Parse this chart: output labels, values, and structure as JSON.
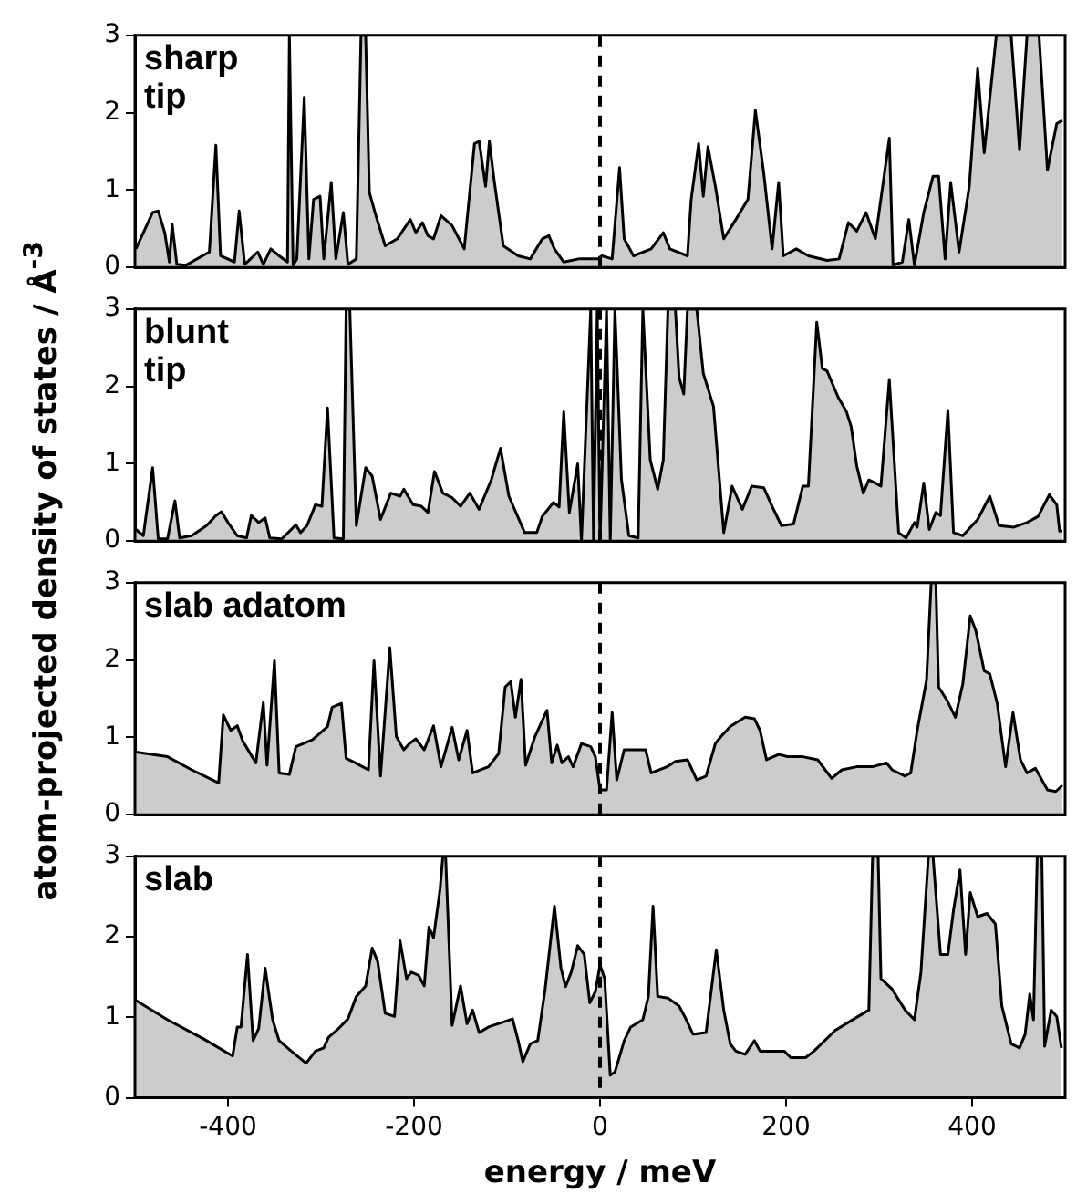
{
  "chart_data": [
    {
      "type": "area",
      "title": "sharp\ntip",
      "ylabel": "atom-projected density of states / Å$^{-3}$",
      "xlim": [
        -500,
        500
      ],
      "ylim": [
        0,
        3
      ],
      "xticks": [
        -400,
        -200,
        0,
        200,
        400
      ],
      "yticks": [
        0,
        1,
        2,
        3
      ],
      "tick_labels": "y",
      "legend": false,
      "grid": false,
      "ref_lines": [
        {
          "axis": "x",
          "value": 0,
          "line_style": "dashed",
          "color": "#000000"
        }
      ],
      "series": [
        {
          "color": "#000000",
          "x": [
            -499,
            -481,
            -475,
            -468,
            -463,
            -460,
            -455,
            -445,
            -420,
            -413,
            -408,
            -393,
            -388,
            -382,
            -368,
            -362,
            -354,
            -345,
            -336,
            -334,
            -330,
            -326,
            -318,
            -313,
            -308,
            -301,
            -297,
            -289,
            -284,
            -276,
            -271,
            -262,
            -257,
            -252,
            -248,
            -241,
            -231,
            -218,
            -204,
            -198,
            -191,
            -185,
            -179,
            -171,
            -159,
            -146,
            -135,
            -130,
            -123,
            -119,
            -114,
            -104,
            -88,
            -75,
            -62,
            -55,
            -49,
            -39,
            -23,
            -10,
            -2,
            2,
            13,
            21,
            26,
            36,
            55,
            68,
            75,
            94,
            98,
            106,
            111,
            116,
            124,
            133,
            146,
            159,
            167,
            176,
            185,
            192,
            197,
            211,
            224,
            244,
            257,
            267,
            276,
            286,
            296,
            311,
            315,
            325,
            332,
            338,
            348,
            358,
            364,
            371,
            377,
            386,
            397,
            406,
            413,
            426,
            442,
            451,
            459,
            472,
            481,
            491,
            497
          ],
          "values": [
            0.24,
            0.71,
            0.73,
            0.45,
            0.07,
            0.56,
            0.04,
            0.03,
            0.2,
            1.58,
            0.15,
            0.07,
            0.73,
            0.04,
            0.2,
            0.04,
            0.24,
            0.15,
            0.07,
            3,
            0.03,
            0.11,
            2.2,
            0.11,
            0.88,
            0.92,
            0.11,
            1.1,
            0.11,
            0.71,
            0.04,
            0.11,
            3,
            3,
            0.97,
            0.67,
            0.28,
            0.37,
            0.62,
            0.45,
            0.58,
            0.41,
            0.37,
            0.67,
            0.54,
            0.24,
            1.6,
            1.63,
            1.05,
            1.63,
            1.14,
            0.28,
            0.15,
            0.11,
            0.37,
            0.41,
            0.24,
            0.07,
            0.11,
            0.11,
            0.11,
            0.15,
            0.11,
            1.29,
            0.37,
            0.15,
            0.24,
            0.45,
            0.24,
            0.15,
            0.88,
            1.6,
            0.92,
            1.56,
            1.05,
            0.37,
            0.62,
            0.88,
            2.03,
            1.22,
            0.24,
            1.1,
            0.15,
            0.24,
            0.15,
            0.09,
            0.11,
            0.58,
            0.47,
            0.71,
            0.37,
            1.67,
            0.03,
            0.07,
            0.62,
            0.03,
            0.71,
            1.18,
            1.18,
            0.11,
            1.1,
            0.2,
            1.05,
            2.57,
            1.48,
            3,
            3,
            1.52,
            3,
            3,
            1.26,
            1.86,
            1.9
          ]
        }
      ]
    },
    {
      "type": "area",
      "title": "blunt\ntip",
      "xlim": [
        -500,
        500
      ],
      "ylim": [
        0,
        3
      ],
      "xticks": [
        -400,
        -200,
        0,
        200,
        400
      ],
      "yticks": [
        0,
        1,
        2,
        3
      ],
      "tick_labels": "y",
      "legend": false,
      "grid": false,
      "ref_lines": [
        {
          "axis": "x",
          "value": 0,
          "line_style": "dashed",
          "color": "#000000"
        }
      ],
      "series": [
        {
          "color": "#000000",
          "x": [
            -499,
            -491,
            -481,
            -475,
            -465,
            -457,
            -452,
            -439,
            -423,
            -413,
            -407,
            -400,
            -390,
            -380,
            -375,
            -367,
            -360,
            -355,
            -342,
            -332,
            -327,
            -322,
            -315,
            -306,
            -299,
            -293,
            -286,
            -276,
            -273,
            -269,
            -262,
            -252,
            -245,
            -236,
            -225,
            -215,
            -211,
            -201,
            -192,
            -185,
            -178,
            -169,
            -159,
            -150,
            -140,
            -130,
            -117,
            -107,
            -98,
            -81,
            -68,
            -62,
            -50,
            -44,
            -39,
            -33,
            -24,
            -20,
            -10,
            -7,
            -3,
            0,
            7,
            11,
            16,
            23,
            31,
            41,
            46,
            54,
            62,
            68,
            73,
            81,
            85,
            90,
            94,
            104,
            111,
            122,
            133,
            142,
            153,
            163,
            176,
            185,
            195,
            208,
            218,
            224,
            233,
            239,
            244,
            256,
            265,
            270,
            276,
            283,
            289,
            296,
            302,
            311,
            321,
            329,
            338,
            341,
            348,
            354,
            361,
            366,
            374,
            380,
            390,
            406,
            419,
            429,
            445,
            459,
            471,
            483,
            491,
            494,
            497
          ],
          "values": [
            0.15,
            0.07,
            0.95,
            0.03,
            0.03,
            0.52,
            0.04,
            0.07,
            0.2,
            0.33,
            0.38,
            0.24,
            0.07,
            0.04,
            0.33,
            0.24,
            0.3,
            0.04,
            0.03,
            0.15,
            0.21,
            0.11,
            0.2,
            0.47,
            0.45,
            1.72,
            0.04,
            0.03,
            3,
            3,
            0.2,
            0.95,
            0.84,
            0.28,
            0.62,
            0.58,
            0.67,
            0.47,
            0.45,
            0.37,
            0.9,
            0.62,
            0.56,
            0.45,
            0.62,
            0.41,
            0.79,
            1.2,
            0.58,
            0.11,
            0.11,
            0.32,
            0.5,
            0.44,
            1.67,
            0.37,
            1.0,
            0.0,
            3,
            0.0,
            3,
            0.0,
            3,
            0.0,
            3,
            0.8,
            0.07,
            0.04,
            3,
            1.05,
            0.67,
            1.05,
            3,
            3,
            2.12,
            1.9,
            3,
            3,
            2.17,
            1.74,
            0.11,
            0.71,
            0.41,
            0.71,
            0.69,
            0.45,
            0.2,
            0.22,
            0.71,
            0.71,
            2.83,
            2.23,
            2.2,
            1.86,
            1.67,
            1.48,
            0.97,
            0.62,
            0.79,
            0.75,
            0.71,
            2.09,
            0.11,
            0.04,
            0.24,
            0.18,
            0.75,
            0.15,
            0.37,
            0.33,
            1.69,
            0.11,
            0.07,
            0.28,
            0.58,
            0.2,
            0.18,
            0.24,
            0.32,
            0.6,
            0.47,
            0.13,
            0.13
          ]
        }
      ]
    },
    {
      "type": "area",
      "title": "slab adatom",
      "xlim": [
        -500,
        500
      ],
      "ylim": [
        0,
        3
      ],
      "xticks": [
        -400,
        -200,
        0,
        200,
        400
      ],
      "yticks": [
        0,
        1,
        2,
        3
      ],
      "tick_labels": "y",
      "legend": false,
      "grid": false,
      "ref_lines": [
        {
          "axis": "x",
          "value": 0,
          "line_style": "dashed",
          "color": "#000000"
        }
      ],
      "series": [
        {
          "color": "#000000",
          "x": [
            -499,
            -465,
            -439,
            -410,
            -405,
            -397,
            -390,
            -384,
            -370,
            -362,
            -358,
            -350,
            -345,
            -334,
            -327,
            -309,
            -293,
            -288,
            -278,
            -273,
            -263,
            -249,
            -243,
            -236,
            -226,
            -219,
            -211,
            -205,
            -198,
            -189,
            -179,
            -171,
            -159,
            -152,
            -143,
            -137,
            -120,
            -109,
            -102,
            -96,
            -91,
            -85,
            -80,
            -70,
            -57,
            -52,
            -46,
            -41,
            -34,
            -29,
            -20,
            -10,
            -5,
            0,
            7,
            13,
            18,
            26,
            49,
            55,
            72,
            81,
            94,
            104,
            114,
            124,
            130,
            140,
            156,
            166,
            172,
            179,
            192,
            202,
            218,
            234,
            249,
            260,
            276,
            293,
            308,
            314,
            328,
            334,
            341,
            351,
            356,
            361,
            364,
            373,
            382,
            390,
            398,
            404,
            413,
            419,
            427,
            436,
            444,
            452,
            459,
            468,
            475,
            481,
            490,
            497
          ],
          "values": [
            0.81,
            0.75,
            0.58,
            0.41,
            1.29,
            1.09,
            1.15,
            0.95,
            0.67,
            1.45,
            0.64,
            1.99,
            0.54,
            0.52,
            0.88,
            0.97,
            1.14,
            1.39,
            1.44,
            0.73,
            0.67,
            0.58,
            1.99,
            0.5,
            2.16,
            1.01,
            0.84,
            0.92,
            0.98,
            0.84,
            1.15,
            0.62,
            1.13,
            0.71,
            1.09,
            0.54,
            0.62,
            0.79,
            1.65,
            1.72,
            1.26,
            1.75,
            0.64,
            1.01,
            1.35,
            0.67,
            0.9,
            0.67,
            0.75,
            0.62,
            0.92,
            0.88,
            0.75,
            0.32,
            0.32,
            1.32,
            0.45,
            0.84,
            0.84,
            0.54,
            0.62,
            0.69,
            0.71,
            0.45,
            0.5,
            0.92,
            1.01,
            1.14,
            1.26,
            1.24,
            1.09,
            0.71,
            0.78,
            0.75,
            0.75,
            0.71,
            0.47,
            0.58,
            0.62,
            0.62,
            0.67,
            0.58,
            0.5,
            0.54,
            1.09,
            1.74,
            3,
            3,
            1.65,
            1.48,
            1.26,
            1.69,
            2.57,
            2.38,
            1.86,
            1.82,
            1.44,
            0.62,
            1.32,
            0.71,
            0.54,
            0.6,
            0.45,
            0.32,
            0.3,
            0.38
          ]
        }
      ]
    },
    {
      "type": "area",
      "title": "slab",
      "xlabel": "energy / meV",
      "xlim": [
        -500,
        500
      ],
      "ylim": [
        0,
        3
      ],
      "xticks": [
        -400,
        -200,
        0,
        200,
        400
      ],
      "yticks": [
        0,
        1,
        2,
        3
      ],
      "legend": false,
      "grid": false,
      "ref_lines": [
        {
          "axis": "x",
          "value": 0,
          "line_style": "dashed",
          "color": "#000000"
        }
      ],
      "series": [
        {
          "color": "#000000",
          "x": [
            -499,
            -465,
            -426,
            -395,
            -390,
            -386,
            -379,
            -373,
            -367,
            -360,
            -352,
            -345,
            -332,
            -316,
            -306,
            -297,
            -292,
            -283,
            -271,
            -262,
            -252,
            -245,
            -239,
            -231,
            -221,
            -215,
            -208,
            -203,
            -195,
            -189,
            -184,
            -179,
            -172,
            -169,
            -166,
            -159,
            -150,
            -143,
            -137,
            -130,
            -120,
            -94,
            -88,
            -83,
            -75,
            -67,
            -59,
            -49,
            -42,
            -37,
            -31,
            -24,
            -17,
            -11,
            -5,
            0,
            5,
            11,
            16,
            26,
            33,
            46,
            52,
            57,
            62,
            73,
            85,
            91,
            100,
            114,
            125,
            133,
            140,
            146,
            156,
            166,
            172,
            198,
            205,
            221,
            230,
            253,
            273,
            289,
            293,
            299,
            302,
            314,
            328,
            338,
            345,
            353,
            358,
            366,
            374,
            380,
            387,
            393,
            398,
            406,
            416,
            425,
            432,
            442,
            451,
            457,
            462,
            466,
            470,
            475,
            478,
            485,
            491,
            496
          ],
          "values": [
            1.21,
            0.97,
            0.73,
            0.52,
            0.88,
            0.88,
            1.78,
            0.71,
            0.86,
            1.61,
            0.97,
            0.71,
            0.58,
            0.43,
            0.58,
            0.62,
            0.75,
            0.84,
            0.98,
            1.26,
            1.39,
            1.86,
            1.69,
            1.05,
            1.01,
            1.95,
            1.48,
            1.56,
            1.52,
            1.39,
            2.12,
            1.99,
            2.59,
            3,
            3,
            0.9,
            1.39,
            0.92,
            1.09,
            0.81,
            0.88,
            0.98,
            0.71,
            0.45,
            0.67,
            0.71,
            1.35,
            2.38,
            1.61,
            1.38,
            1.56,
            1.89,
            1.78,
            1.18,
            1.32,
            1.65,
            1.48,
            0.28,
            0.32,
            0.71,
            0.88,
            0.97,
            1.26,
            2.38,
            1.26,
            1.24,
            1.14,
            1.01,
            0.79,
            0.81,
            1.84,
            1.09,
            0.67,
            0.58,
            0.54,
            0.71,
            0.58,
            0.58,
            0.5,
            0.5,
            0.58,
            0.84,
            0.98,
            1.09,
            3,
            3,
            1.48,
            1.35,
            1.09,
            0.97,
            1.56,
            3,
            3,
            1.78,
            1.78,
            2.33,
            2.83,
            1.78,
            2.55,
            2.25,
            2.29,
            2.16,
            1.14,
            0.67,
            0.62,
            0.79,
            1.29,
            0.97,
            3,
            3,
            0.64,
            1.09,
            1.01,
            0.62
          ]
        }
      ]
    }
  ]
}
